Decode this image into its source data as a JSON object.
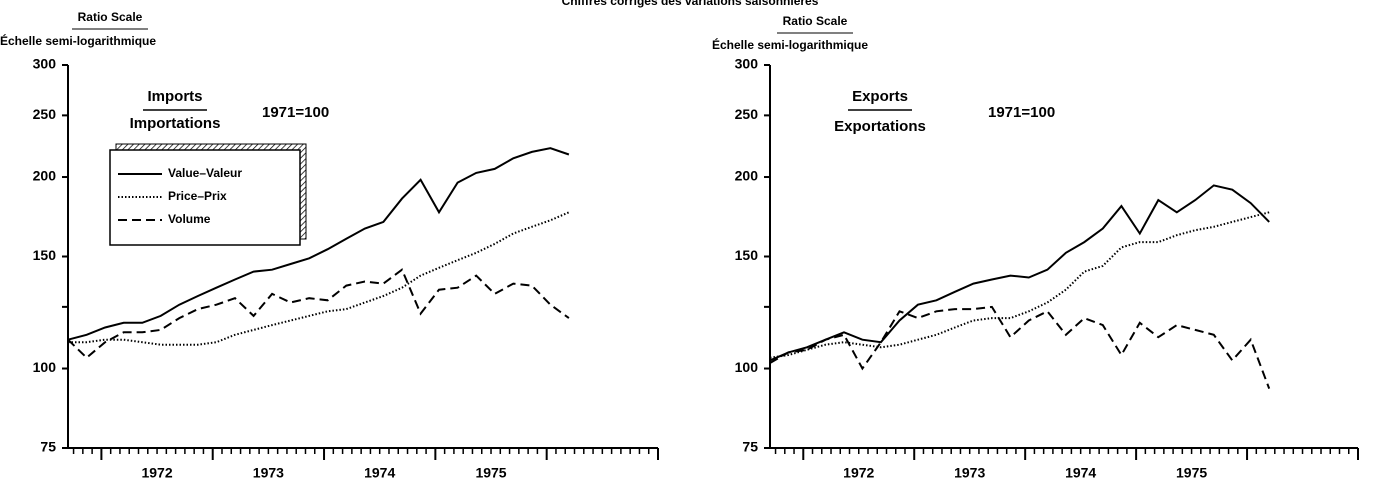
{
  "subtitle": "Chiffres corrigés des variations saisonnières",
  "chart_data": [
    {
      "type": "line",
      "title": "Imports",
      "title_alt": "Importations",
      "base": "1971=100",
      "ylabel": "Ratio Scale",
      "ylabel_alt": "Échelle semi-logarithmique",
      "log_scale": true,
      "legend": "upper left",
      "ylim": [
        75,
        300
      ],
      "yticks": [
        75,
        100,
        150,
        200,
        250,
        300
      ],
      "minor_yticks": [
        125
      ],
      "xlim": [
        1971.7,
        1977.0
      ],
      "xticks": [
        {
          "value": 1972.5,
          "label": "1972"
        },
        {
          "value": 1973.5,
          "label": "1973"
        },
        {
          "value": 1974.5,
          "label": "1974"
        },
        {
          "value": 1975.5,
          "label": "1975"
        }
      ],
      "major_xticks": [
        1972,
        1973,
        1974,
        1975,
        1976,
        1977
      ],
      "x": [
        1971.7,
        1971.867,
        1972.033,
        1972.2,
        1972.367,
        1972.533,
        1972.7,
        1972.867,
        1973.033,
        1973.2,
        1973.367,
        1973.533,
        1973.7,
        1973.867,
        1974.033,
        1974.2,
        1974.367,
        1974.533,
        1974.7,
        1974.867,
        1975.033,
        1975.2,
        1975.367,
        1975.533,
        1975.7,
        1975.867,
        1976.033,
        1976.2
      ],
      "series": [
        {
          "name": "Value–Valeur",
          "color": "#000000",
          "dash": "solid",
          "values": [
            111,
            113,
            116,
            118,
            118,
            121,
            126,
            130,
            134,
            138,
            142,
            143,
            146,
            149,
            154,
            160,
            166,
            170,
            185,
            198,
            176,
            196,
            203,
            206,
            214,
            219,
            222,
            217
          ]
        },
        {
          "name": "Price–Prix",
          "color": "#000000",
          "dash": "dotted",
          "values": [
            110,
            110,
            111,
            111,
            110,
            109,
            109,
            109,
            110,
            113,
            115,
            117,
            119,
            121,
            123,
            124,
            127,
            130,
            134,
            140,
            144,
            148,
            152,
            157,
            163,
            167,
            171,
            176
          ]
        },
        {
          "name": "Volume",
          "color": "#000000",
          "dash": "dashed",
          "values": [
            111,
            104,
            110,
            114,
            114,
            115,
            120,
            124,
            126,
            129,
            121,
            131,
            127,
            129,
            128,
            135,
            137,
            136,
            143,
            122,
            133,
            134,
            140,
            131,
            136,
            135,
            126,
            120
          ]
        }
      ]
    },
    {
      "type": "line",
      "title": "Exports",
      "title_alt": "Exportations",
      "base": "1971=100",
      "ylabel": "Ratio Scale",
      "ylabel_alt": "Échelle semi-logarithmique",
      "log_scale": true,
      "ylim": [
        75,
        300
      ],
      "yticks": [
        75,
        100,
        150,
        200,
        250,
        300
      ],
      "minor_yticks": [
        125
      ],
      "xlim": [
        1971.7,
        1977.0
      ],
      "xticks": [
        {
          "value": 1972.5,
          "label": "1972"
        },
        {
          "value": 1973.5,
          "label": "1973"
        },
        {
          "value": 1974.5,
          "label": "1974"
        },
        {
          "value": 1975.5,
          "label": "1975"
        }
      ],
      "major_xticks": [
        1972,
        1973,
        1974,
        1975,
        1976,
        1977
      ],
      "x": [
        1971.7,
        1971.867,
        1972.033,
        1972.2,
        1972.367,
        1972.533,
        1972.7,
        1972.867,
        1973.033,
        1973.2,
        1973.367,
        1973.533,
        1973.7,
        1973.867,
        1974.033,
        1974.2,
        1974.367,
        1974.533,
        1974.7,
        1974.867,
        1975.033,
        1975.2,
        1975.367,
        1975.533,
        1975.7,
        1975.867,
        1976.033,
        1976.2
      ],
      "series": [
        {
          "name": "Value–Valeur",
          "color": "#000000",
          "dash": "solid",
          "values": [
            103,
            106,
            108,
            111,
            114,
            111,
            110,
            119,
            126,
            128,
            132,
            136,
            138,
            140,
            139,
            143,
            152,
            158,
            166,
            180,
            163,
            184,
            176,
            184,
            194,
            191,
            182,
            170
          ]
        },
        {
          "name": "Price–Prix",
          "color": "#000000",
          "dash": "dotted",
          "values": [
            104,
            105,
            107,
            109,
            110,
            109,
            108,
            109,
            111,
            113,
            116,
            119,
            120,
            120,
            123,
            127,
            133,
            142,
            145,
            155,
            158,
            158,
            162,
            165,
            167,
            170,
            173,
            176
          ]
        },
        {
          "name": "Volume",
          "color": "#000000",
          "dash": "dashed",
          "values": [
            102,
            106,
            107,
            111,
            113,
            100,
            110,
            123,
            120,
            123,
            124,
            124,
            125,
            112,
            119,
            123,
            113,
            120,
            117,
            105,
            118,
            112,
            117,
            115,
            113,
            103,
            111,
            93
          ]
        }
      ]
    }
  ]
}
